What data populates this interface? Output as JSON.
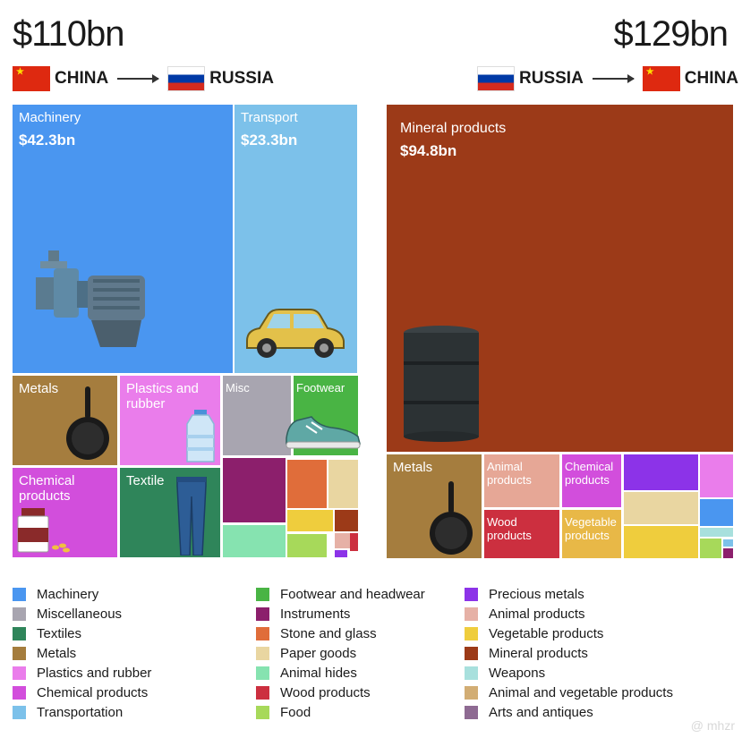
{
  "chart_data": [
    {
      "type": "treemap",
      "total": "$110bn",
      "from": "CHINA",
      "to": "RUSSIA",
      "cells": [
        {
          "label": "Machinery",
          "value": "$42.3bn",
          "category": "Machinery",
          "color": "#4a96f0"
        },
        {
          "label": "Transport",
          "value": "$23.3bn",
          "category": "Transportation",
          "color": "#7cc1ea"
        },
        {
          "label": "Metals",
          "category": "Metals",
          "color": "#a57d3e"
        },
        {
          "label": "Plastics and rubber",
          "category": "Plastics and rubber",
          "color": "#ea7deb"
        },
        {
          "label": "Misc",
          "category": "Miscellaneous",
          "color": "#a8a5b0"
        },
        {
          "label": "Footwear",
          "category": "Footwear and headwear",
          "color": "#49b444"
        },
        {
          "label": "Chemical products",
          "category": "Chemical products",
          "color": "#d24edc"
        },
        {
          "label": "Textile",
          "category": "Textiles",
          "color": "#2f855a"
        },
        {
          "category": "Instruments",
          "color": "#8c1f6c"
        },
        {
          "category": "Stone and glass",
          "color": "#e06d3a"
        },
        {
          "category": "Paper goods",
          "color": "#e9d6a1"
        },
        {
          "category": "Animal hides",
          "color": "#86e3b0"
        },
        {
          "category": "Vegetable products",
          "color": "#efcd3d"
        },
        {
          "category": "Mineral products",
          "color": "#9c3a18"
        },
        {
          "category": "Food",
          "color": "#a7d95a"
        },
        {
          "category": "Animal products",
          "color": "#e6b1a6"
        },
        {
          "category": "Wood products",
          "color": "#cc2f3f"
        },
        {
          "category": "Precious metals",
          "color": "#8c33e8"
        }
      ]
    },
    {
      "type": "treemap",
      "total": "$129bn",
      "from": "RUSSIA",
      "to": "CHINA",
      "cells": [
        {
          "label": "Mineral products",
          "value": "$94.8bn",
          "category": "Mineral products",
          "color": "#9c3a18"
        },
        {
          "label": "Metals",
          "category": "Metals",
          "color": "#a57d3e"
        },
        {
          "label": "Animal products",
          "category": "Animal products",
          "color": "#e6a796"
        },
        {
          "label": "Chemical products",
          "category": "Chemical products",
          "color": "#d24edc"
        },
        {
          "label": "Wood products",
          "category": "Wood products",
          "color": "#cc2f3f"
        },
        {
          "label": "Vegetable products",
          "category": "Vegetable products",
          "color": "#e8b847"
        },
        {
          "category": "Precious metals",
          "color": "#8c33e8"
        },
        {
          "category": "Paper goods",
          "color": "#e9d6a1"
        },
        {
          "category": "Animal and vegetable products",
          "color": "#efcd3d"
        },
        {
          "category": "Plastics and rubber",
          "color": "#ea7deb"
        },
        {
          "category": "Machinery",
          "color": "#4a96f0"
        },
        {
          "category": "Weapons",
          "color": "#a8e0dd"
        },
        {
          "category": "Food",
          "color": "#a7d95a"
        },
        {
          "category": "Transportation",
          "color": "#7cc1ea"
        },
        {
          "category": "Instruments",
          "color": "#8c1f6c"
        }
      ]
    }
  ],
  "legend": [
    {
      "label": "Machinery",
      "color": "#4a96f0"
    },
    {
      "label": "Miscellaneous",
      "color": "#a8a5b0"
    },
    {
      "label": "Textiles",
      "color": "#2f855a"
    },
    {
      "label": "Metals",
      "color": "#a57d3e"
    },
    {
      "label": "Plastics and rubber",
      "color": "#ea7deb"
    },
    {
      "label": "Chemical products",
      "color": "#d24edc"
    },
    {
      "label": "Transportation",
      "color": "#7cc1ea"
    },
    {
      "label": "Footwear and headwear",
      "color": "#49b444"
    },
    {
      "label": "Instruments",
      "color": "#8c1f6c"
    },
    {
      "label": "Stone and glass",
      "color": "#e06d3a"
    },
    {
      "label": "Paper goods",
      "color": "#e9d6a1"
    },
    {
      "label": "Animal hides",
      "color": "#86e3b0"
    },
    {
      "label": "Wood products",
      "color": "#cc2f3f"
    },
    {
      "label": "Food",
      "color": "#a7d95a"
    },
    {
      "label": "Precious metals",
      "color": "#8c33e8"
    },
    {
      "label": "Animal products",
      "color": "#e6b1a6"
    },
    {
      "label": "Vegetable products",
      "color": "#efcd3d"
    },
    {
      "label": "Mineral products",
      "color": "#9c3a18"
    },
    {
      "label": "Weapons",
      "color": "#a8e0dd"
    },
    {
      "label": "Animal and vegetable products",
      "color": "#d2ad74"
    },
    {
      "label": "Arts and antiques",
      "color": "#8e6a92"
    }
  ],
  "watermark": "@ mhzr"
}
